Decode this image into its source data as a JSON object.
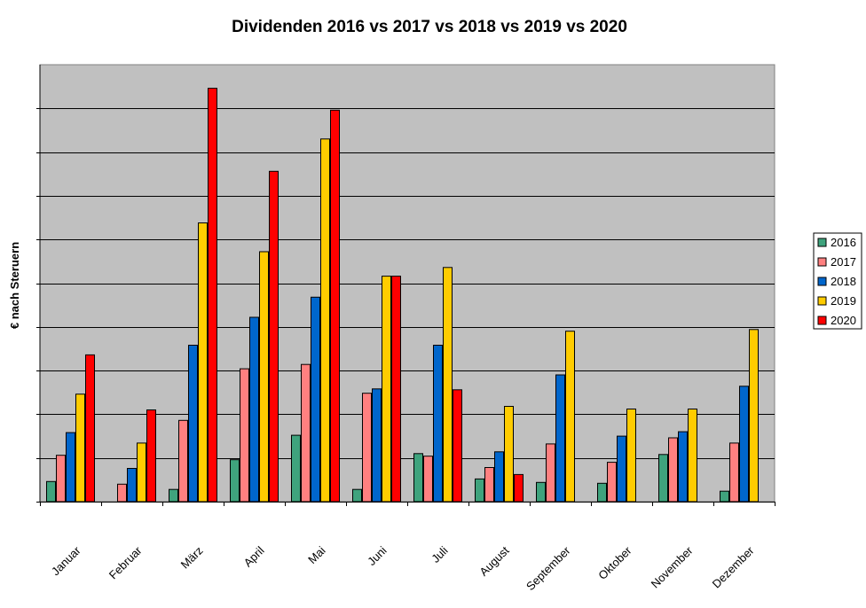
{
  "chart_data": {
    "type": "bar",
    "title": "Dividenden 2016 vs 2017 vs 2018 vs 2019 vs 2020",
    "xlabel": "",
    "ylabel": "€ nach Steruern",
    "ylim": [
      0,
      100
    ],
    "y_tick_labels_visible": false,
    "grid": "horizontal",
    "plot_background": "#c0c0c0",
    "legend_position": "right",
    "categories": [
      "Januar",
      "Februar",
      "März",
      "April",
      "Mai",
      "Juni",
      "Juli",
      "August",
      "September",
      "Oktober",
      "November",
      "Dezember"
    ],
    "series": [
      {
        "name": "2016",
        "color": "#3fa37d",
        "values": [
          4.6,
          0,
          2.8,
          9.6,
          15.2,
          2.8,
          11.0,
          5.2,
          4.4,
          4.2,
          10.8,
          2.4
        ]
      },
      {
        "name": "2017",
        "color": "#ff8080",
        "values": [
          10.6,
          4.0,
          18.6,
          30.4,
          31.4,
          24.8,
          10.4,
          7.8,
          13.2,
          9.0,
          14.6,
          13.4
        ]
      },
      {
        "name": "2018",
        "color": "#0066cc",
        "values": [
          15.8,
          7.6,
          35.8,
          42.2,
          46.8,
          25.8,
          35.8,
          11.4,
          29.0,
          15.0,
          16.0,
          26.4
        ]
      },
      {
        "name": "2019",
        "color": "#ffcc00",
        "values": [
          24.6,
          13.4,
          63.8,
          57.2,
          83.0,
          51.6,
          53.6,
          21.8,
          39.0,
          21.2,
          21.2,
          39.4
        ]
      },
      {
        "name": "2020",
        "color": "#ff0000",
        "values": [
          33.6,
          21.0,
          94.6,
          75.6,
          89.6,
          51.6,
          25.6,
          6.2,
          0,
          0,
          0,
          0
        ]
      }
    ]
  }
}
